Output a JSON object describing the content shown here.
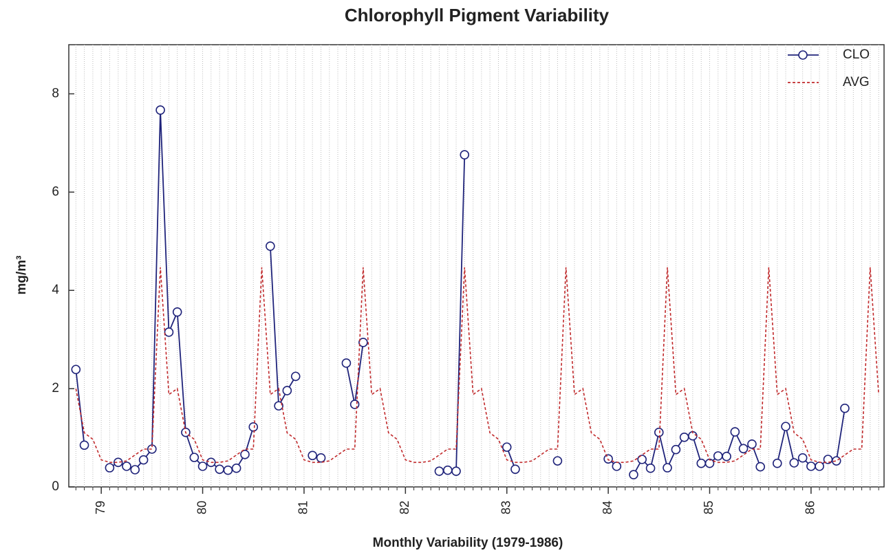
{
  "chart_data": {
    "type": "line",
    "title": "Chlorophyll Pigment Variability",
    "xlabel": "Monthly Variability (1979-1986)",
    "ylabel": "mg/m³",
    "x": [
      78.75,
      78.833,
      78.917,
      79,
      79.083,
      79.167,
      79.25,
      79.333,
      79.417,
      79.5,
      79.583,
      79.667,
      79.75,
      79.833,
      79.917,
      80,
      80.083,
      80.167,
      80.25,
      80.333,
      80.417,
      80.5,
      80.583,
      80.667,
      80.75,
      80.833,
      80.917,
      81,
      81.083,
      81.167,
      81.25,
      81.333,
      81.417,
      81.5,
      81.583,
      81.667,
      81.75,
      81.833,
      81.917,
      82,
      82.083,
      82.167,
      82.25,
      82.333,
      82.417,
      82.5,
      82.583,
      82.667,
      82.75,
      82.833,
      82.917,
      83,
      83.083,
      83.167,
      83.25,
      83.333,
      83.417,
      83.5,
      83.583,
      83.667,
      83.75,
      83.833,
      83.917,
      84,
      84.083,
      84.167,
      84.25,
      84.333,
      84.417,
      84.5,
      84.583,
      84.667,
      84.75,
      84.833,
      84.917,
      85,
      85.083,
      85.167,
      85.25,
      85.333,
      85.417,
      85.5,
      85.583,
      85.667,
      85.75,
      85.833,
      85.917,
      86,
      86.083,
      86.167,
      86.25,
      86.333,
      86.417,
      86.5,
      86.583,
      86.667
    ],
    "series": [
      {
        "name": "CLO",
        "color": "#1f237a",
        "linestyle": "solid",
        "marker": "circle",
        "values": [
          2.39,
          0.85,
          null,
          null,
          0.39,
          0.5,
          0.42,
          0.35,
          0.55,
          0.77,
          7.67,
          3.15,
          3.56,
          1.11,
          0.6,
          0.42,
          0.5,
          0.36,
          0.34,
          0.38,
          0.66,
          1.22,
          null,
          4.9,
          1.65,
          1.96,
          2.25,
          null,
          0.64,
          0.59,
          null,
          null,
          2.52,
          1.68,
          2.94,
          null,
          null,
          null,
          null,
          null,
          null,
          null,
          null,
          0.32,
          0.34,
          0.32,
          6.76,
          null,
          null,
          null,
          null,
          0.81,
          0.36,
          null,
          null,
          null,
          null,
          0.53,
          null,
          null,
          null,
          null,
          null,
          0.57,
          0.42,
          null,
          0.25,
          0.56,
          0.38,
          1.11,
          0.39,
          0.76,
          1.01,
          1.04,
          0.48,
          0.48,
          0.63,
          0.62,
          1.12,
          0.78,
          0.87,
          0.41,
          null,
          0.48,
          1.23,
          0.49,
          0.59,
          0.42,
          0.42,
          0.56,
          0.53,
          1.6,
          null,
          null,
          null,
          null
        ]
      },
      {
        "name": "AVG",
        "color": "#c0282a",
        "linestyle": "dashed",
        "marker": "none",
        "values": [
          2,
          1.1,
          0.97,
          0.55,
          0.5,
          0.5,
          0.53,
          0.65,
          0.77,
          0.77,
          4.47,
          1.88,
          2,
          1.1,
          0.97,
          0.55,
          0.5,
          0.5,
          0.53,
          0.65,
          0.77,
          0.77,
          4.47,
          1.88,
          2,
          1.1,
          0.97,
          0.55,
          0.5,
          0.5,
          0.53,
          0.65,
          0.77,
          0.77,
          4.47,
          1.88,
          2,
          1.1,
          0.97,
          0.55,
          0.5,
          0.5,
          0.53,
          0.65,
          0.77,
          0.77,
          4.47,
          1.88,
          2,
          1.1,
          0.97,
          0.55,
          0.5,
          0.5,
          0.53,
          0.65,
          0.77,
          0.77,
          4.47,
          1.88,
          2,
          1.1,
          0.97,
          0.55,
          0.5,
          0.5,
          0.53,
          0.65,
          0.77,
          0.77,
          4.47,
          1.88,
          2,
          1.1,
          0.97,
          0.55,
          0.5,
          0.5,
          0.53,
          0.65,
          0.77,
          0.77,
          4.47,
          1.88,
          2,
          1.1,
          0.97,
          0.55,
          0.5,
          0.5,
          0.53,
          0.65,
          0.77,
          0.77,
          4.47,
          1.88
        ]
      }
    ],
    "xlim": [
      78.68,
      86.72
    ],
    "xticks": [
      79,
      80,
      81,
      82,
      83,
      84,
      85,
      86
    ],
    "ylim": [
      0,
      9
    ],
    "yticks": [
      0,
      2,
      4,
      6,
      8
    ],
    "grid": true,
    "legend": "upper right"
  }
}
